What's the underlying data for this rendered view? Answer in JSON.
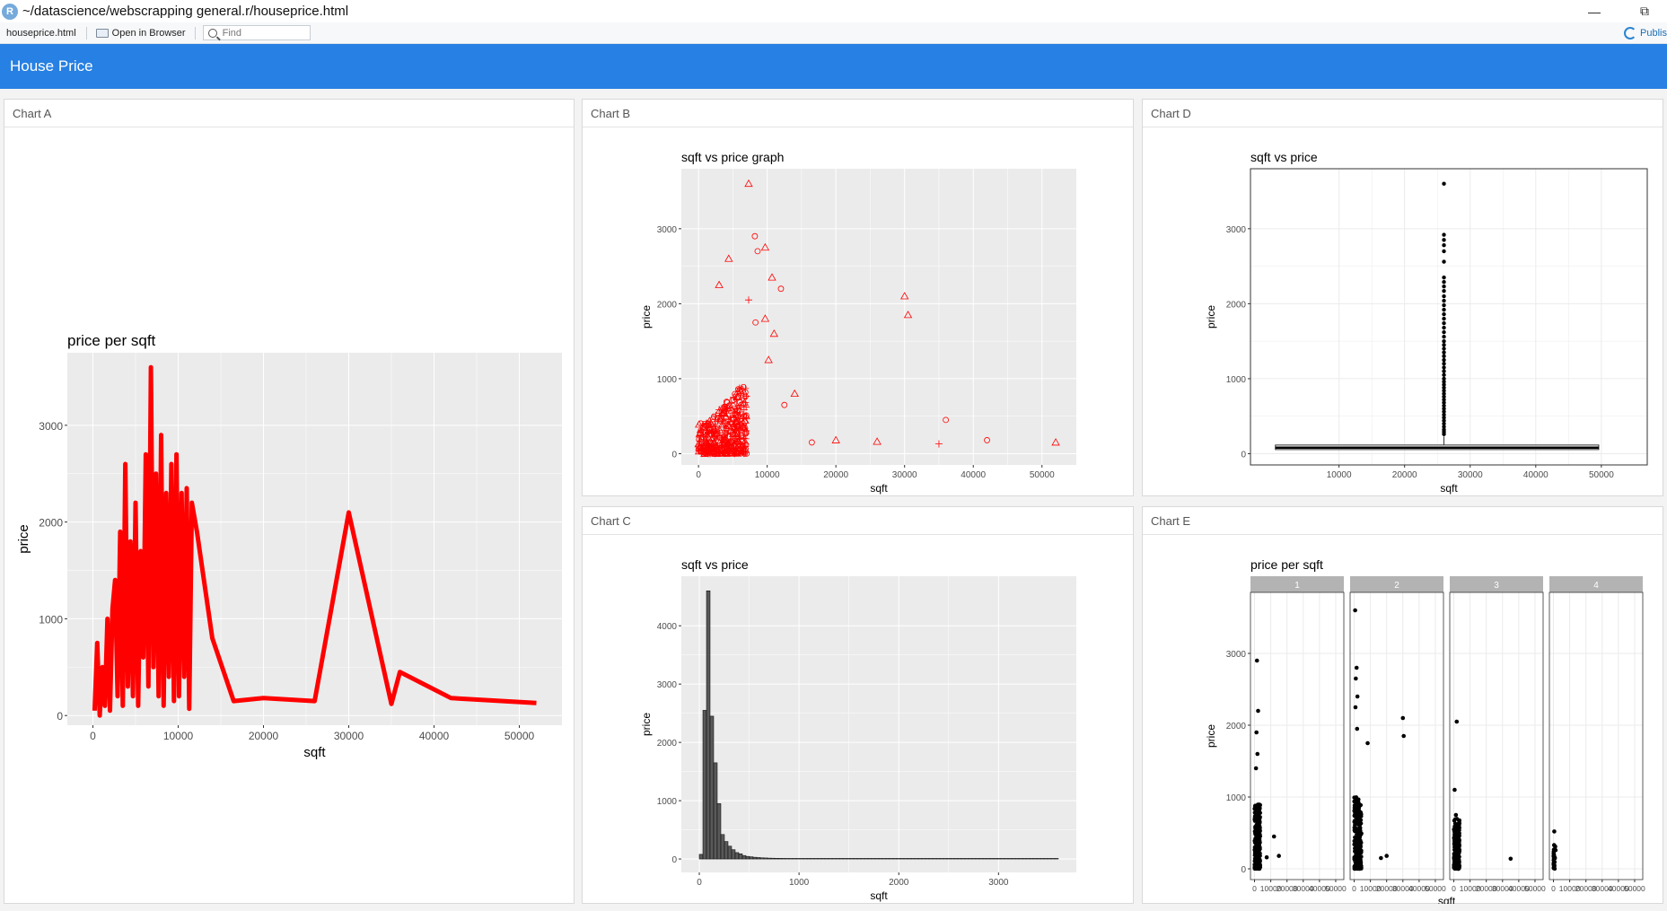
{
  "window": {
    "app_icon": "R",
    "title": "~/datascience/webscrapping general.r/houseprice.html",
    "minimize_icon": "minimize-icon",
    "restore_icon": "restore-icon"
  },
  "toolbar": {
    "file_label": "houseprice.html",
    "open_browser_label": "Open in Browser",
    "find_placeholder": "Find",
    "publish_label": "Publis"
  },
  "navbar": {
    "brand": "House Price"
  },
  "colors": {
    "navbar": "#2780e3",
    "line_red": "#ff0000",
    "panel_bg": "#ebebeb",
    "strip": "#b3b3b3"
  },
  "cards": {
    "a": {
      "header": "Chart A"
    },
    "b": {
      "header": "Chart B"
    },
    "c": {
      "header": "Chart C"
    },
    "d": {
      "header": "Chart D"
    },
    "e": {
      "header": "Chart E"
    }
  },
  "chart_data": [
    {
      "id": "A",
      "type": "line",
      "title": "price per sqft",
      "xlabel": "sqft",
      "ylabel": "price",
      "xlim": [
        -3000,
        55000
      ],
      "ylim": [
        -100,
        3750
      ],
      "xticks": [
        0,
        10000,
        20000,
        30000,
        40000,
        50000
      ],
      "yticks": [
        0,
        1000,
        2000,
        3000
      ],
      "series": [
        {
          "color": "#ff0000",
          "x": [
            200,
            500,
            800,
            1100,
            1400,
            1700,
            2000,
            2300,
            2600,
            2900,
            3200,
            3500,
            3800,
            4100,
            4400,
            4700,
            5000,
            5300,
            5600,
            5900,
            6200,
            6500,
            6800,
            7100,
            7400,
            7700,
            8000,
            8300,
            8600,
            8900,
            9200,
            9500,
            9800,
            10100,
            10400,
            10700,
            11000,
            11300,
            11600,
            12200,
            14000,
            16500,
            20000,
            26000,
            30000,
            35000,
            36000,
            42000,
            52000
          ],
          "y": [
            50,
            750,
            0,
            500,
            100,
            1000,
            50,
            1100,
            1400,
            200,
            1900,
            100,
            2600,
            300,
            1800,
            200,
            2200,
            100,
            1700,
            600,
            2700,
            300,
            3600,
            500,
            2500,
            200,
            2900,
            100,
            2300,
            400,
            2600,
            150,
            2700,
            200,
            2300,
            400,
            2350,
            70,
            2200,
            1900,
            800,
            150,
            180,
            150,
            2100,
            120,
            450,
            180,
            130
          ]
        }
      ]
    },
    {
      "id": "B",
      "type": "scatter",
      "title": "sqft vs price graph",
      "xlabel": "sqft",
      "ylabel": "price",
      "xlim": [
        -2500,
        55000
      ],
      "ylim": [
        -150,
        3800
      ],
      "xticks": [
        0,
        10000,
        20000,
        30000,
        40000,
        50000
      ],
      "yticks": [
        0,
        1000,
        2000,
        3000
      ],
      "points_highlighted": [
        {
          "x": 7300,
          "y": 3600,
          "shape": "triangle"
        },
        {
          "x": 8200,
          "y": 2900,
          "shape": "circle"
        },
        {
          "x": 9700,
          "y": 2750,
          "shape": "triangle"
        },
        {
          "x": 4400,
          "y": 2600,
          "shape": "triangle"
        },
        {
          "x": 8600,
          "y": 2700,
          "shape": "circle"
        },
        {
          "x": 10700,
          "y": 2350,
          "shape": "triangle"
        },
        {
          "x": 3000,
          "y": 2250,
          "shape": "triangle"
        },
        {
          "x": 12000,
          "y": 2200,
          "shape": "circle"
        },
        {
          "x": 30000,
          "y": 2100,
          "shape": "triangle"
        },
        {
          "x": 7300,
          "y": 2050,
          "shape": "cross"
        },
        {
          "x": 30500,
          "y": 1850,
          "shape": "triangle"
        },
        {
          "x": 9700,
          "y": 1800,
          "shape": "triangle"
        },
        {
          "x": 8300,
          "y": 1750,
          "shape": "circle"
        },
        {
          "x": 11000,
          "y": 1600,
          "shape": "triangle"
        },
        {
          "x": 10200,
          "y": 1250,
          "shape": "triangle"
        },
        {
          "x": 14000,
          "y": 800,
          "shape": "triangle"
        },
        {
          "x": 12500,
          "y": 650,
          "shape": "circle"
        },
        {
          "x": 16500,
          "y": 150,
          "shape": "circle"
        },
        {
          "x": 20000,
          "y": 180,
          "shape": "triangle"
        },
        {
          "x": 26000,
          "y": 160,
          "shape": "triangle"
        },
        {
          "x": 35000,
          "y": 130,
          "shape": "cross"
        },
        {
          "x": 36000,
          "y": 450,
          "shape": "circle"
        },
        {
          "x": 42000,
          "y": 180,
          "shape": "circle"
        },
        {
          "x": 52000,
          "y": 150,
          "shape": "triangle"
        }
      ],
      "cluster": {
        "x_range": [
          0,
          7000
        ],
        "y_range": [
          0,
          1000
        ],
        "color": "#ff0000"
      }
    },
    {
      "id": "C",
      "type": "bar",
      "title": "sqft vs price",
      "xlabel": "sqft",
      "ylabel": "price",
      "xlim": [
        -180,
        3780
      ],
      "ylim": [
        -230,
        4850
      ],
      "xticks": [
        0,
        1000,
        2000,
        3000
      ],
      "yticks": [
        0,
        1000,
        2000,
        3000,
        4000
      ],
      "bin_width": 36,
      "values": [
        80,
        2550,
        4600,
        2450,
        1650,
        950,
        420,
        300,
        220,
        160,
        110,
        90,
        60,
        45,
        38,
        30,
        25,
        20,
        18,
        15,
        14,
        12,
        11,
        10,
        9,
        8,
        8,
        7,
        7,
        6,
        6,
        5,
        5,
        5,
        4,
        4,
        4,
        3,
        3,
        3,
        3,
        3,
        3,
        2,
        2,
        2,
        2,
        2,
        2,
        2,
        2,
        2,
        2,
        2,
        2,
        2,
        2,
        2,
        2,
        2,
        2,
        2,
        2,
        2,
        2,
        2,
        2,
        2,
        2,
        2,
        2,
        2,
        2,
        2,
        2,
        2,
        2,
        2,
        2,
        2,
        2,
        2,
        2,
        2,
        2,
        2,
        2,
        2,
        2,
        2,
        2,
        2,
        2,
        2,
        2,
        2,
        2,
        2,
        2,
        2
      ]
    },
    {
      "id": "D",
      "type": "box",
      "title": "sqft vs price",
      "xlabel": "sqft",
      "ylabel": "price",
      "xlim": [
        -3500,
        57000
      ],
      "ylim": [
        -150,
        3800
      ],
      "xticks": [
        10000,
        20000,
        30000,
        40000,
        50000
      ],
      "yticks": [
        0,
        1000,
        2000,
        3000
      ],
      "box": {
        "xmin": 300,
        "xmax": 49600,
        "q1": 55,
        "median": 80,
        "q3": 115,
        "whisker_high": 230,
        "outlier_x": 26000
      },
      "outliers": [
        3600,
        2920,
        2850,
        2780,
        2700,
        2560,
        2350,
        2290,
        2230,
        2170,
        2100,
        2040,
        1980,
        1920,
        1860,
        1800,
        1740,
        1680,
        1620,
        1560,
        1500,
        1450,
        1400,
        1350,
        1300,
        1250,
        1200,
        1150,
        1100,
        1050,
        1000,
        960,
        920,
        880,
        840,
        800,
        760,
        720,
        680,
        640,
        600,
        560,
        520,
        480,
        440,
        400,
        360,
        320,
        290,
        260
      ]
    },
    {
      "id": "E",
      "type": "scatter",
      "title": "price per sqft",
      "xlabel": "sqft",
      "ylabel": "price",
      "facets": [
        "1",
        "2",
        "3",
        "4"
      ],
      "xlim": [
        -2500,
        55000
      ],
      "ylim": [
        -150,
        3850
      ],
      "xticks": [
        0,
        10000,
        20000,
        30000,
        40000,
        50000
      ],
      "xtick_labels": [
        "0",
        "10000",
        "20000",
        "30000",
        "40000",
        "50000"
      ],
      "yticks": [
        0,
        1000,
        2000,
        3000
      ],
      "facet_points": [
        [
          {
            "x": 1500,
            "y": 2900
          },
          {
            "x": 2200,
            "y": 2200
          },
          {
            "x": 1200,
            "y": 1900
          },
          {
            "x": 1800,
            "y": 1600
          },
          {
            "x": 900,
            "y": 1400
          },
          {
            "x": 12000,
            "y": 450
          },
          {
            "x": 15000,
            "y": 180
          },
          {
            "x": 7500,
            "y": 160
          }
        ],
        [
          {
            "x": 600,
            "y": 3600
          },
          {
            "x": 1500,
            "y": 2800
          },
          {
            "x": 1000,
            "y": 2650
          },
          {
            "x": 2000,
            "y": 2400
          },
          {
            "x": 800,
            "y": 2250
          },
          {
            "x": 1800,
            "y": 1950
          },
          {
            "x": 30000,
            "y": 2100
          },
          {
            "x": 30500,
            "y": 1850
          },
          {
            "x": 16500,
            "y": 150
          },
          {
            "x": 20000,
            "y": 180
          },
          {
            "x": 8300,
            "y": 1750
          }
        ],
        [
          {
            "x": 1800,
            "y": 2050
          },
          {
            "x": 500,
            "y": 1100
          },
          {
            "x": 35000,
            "y": 140
          },
          {
            "x": 1300,
            "y": 750
          }
        ],
        [
          {
            "x": 500,
            "y": 520
          },
          {
            "x": 400,
            "y": 330
          },
          {
            "x": 1300,
            "y": 260
          },
          {
            "x": 300,
            "y": 200
          },
          {
            "x": 100,
            "y": 80
          },
          {
            "x": 900,
            "y": 150
          },
          {
            "x": 600,
            "y": 40
          },
          {
            "x": 1100,
            "y": 310
          }
        ]
      ],
      "facet_cluster_ranges": [
        [
          0,
          3500,
          0,
          900
        ],
        [
          0,
          4500,
          0,
          1000
        ],
        [
          0,
          3500,
          0,
          700
        ],
        [
          0,
          800,
          0,
          300
        ]
      ]
    }
  ]
}
